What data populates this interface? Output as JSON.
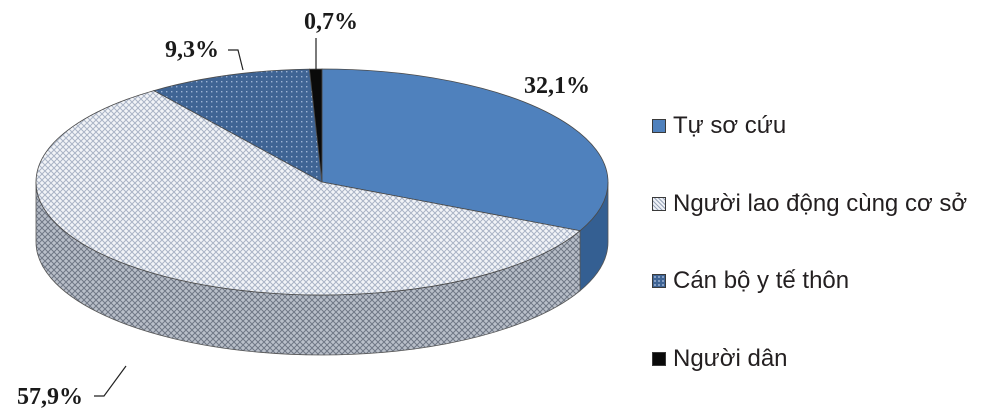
{
  "chart_data": {
    "type": "pie",
    "three_d": true,
    "slices": [
      {
        "label": "Tự sơ cứu",
        "value": 32.1,
        "value_label": "32,1%",
        "color": "#4f81bd",
        "pattern": "solid"
      },
      {
        "label": "Người lao động cùng cơ sở",
        "value": 57.9,
        "value_label": "57,9%",
        "color": "#dfe5ef",
        "pattern": "diamond-grid"
      },
      {
        "label": "Cán bộ y tế thôn",
        "value": 9.3,
        "value_label": "9,3%",
        "color": "#3f6494",
        "pattern": "dotted"
      },
      {
        "label": "Người dân",
        "value": 0.7,
        "value_label": "0,7%",
        "color": "#0a0a0a",
        "pattern": "solid"
      }
    ],
    "legend_position": "right"
  }
}
